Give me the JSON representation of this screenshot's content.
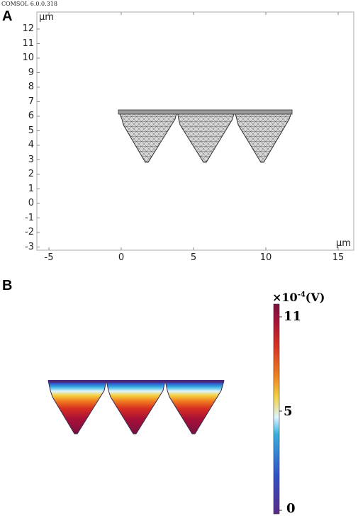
{
  "version_text": "COMSOL 6.0.0.318",
  "panelA": {
    "label": "A",
    "y_unit": "μm",
    "x_unit": "μm",
    "y_ticks": [
      "12",
      "11",
      "10",
      "9",
      "8",
      "7",
      "6",
      "5",
      "4",
      "3",
      "2",
      "1",
      "0",
      "-1",
      "-2",
      "-3"
    ],
    "x_ticks": [
      "-5",
      "0",
      "5",
      "10",
      "15"
    ],
    "mesh_color": "#555555",
    "mesh_fill": "#cfcfcf"
  },
  "panelB": {
    "label": "B",
    "colorbar_title": "×10",
    "colorbar_exponent": "-4",
    "colorbar_unit": "(V)",
    "colorbar_ticks": [
      "11",
      "5",
      "0"
    ],
    "colormap": [
      "#5a2a8a",
      "#3050c8",
      "#35b0e0",
      "#c8f0ff",
      "#f8e050",
      "#f0a020",
      "#e04020",
      "#b01030",
      "#7a1040"
    ]
  }
}
